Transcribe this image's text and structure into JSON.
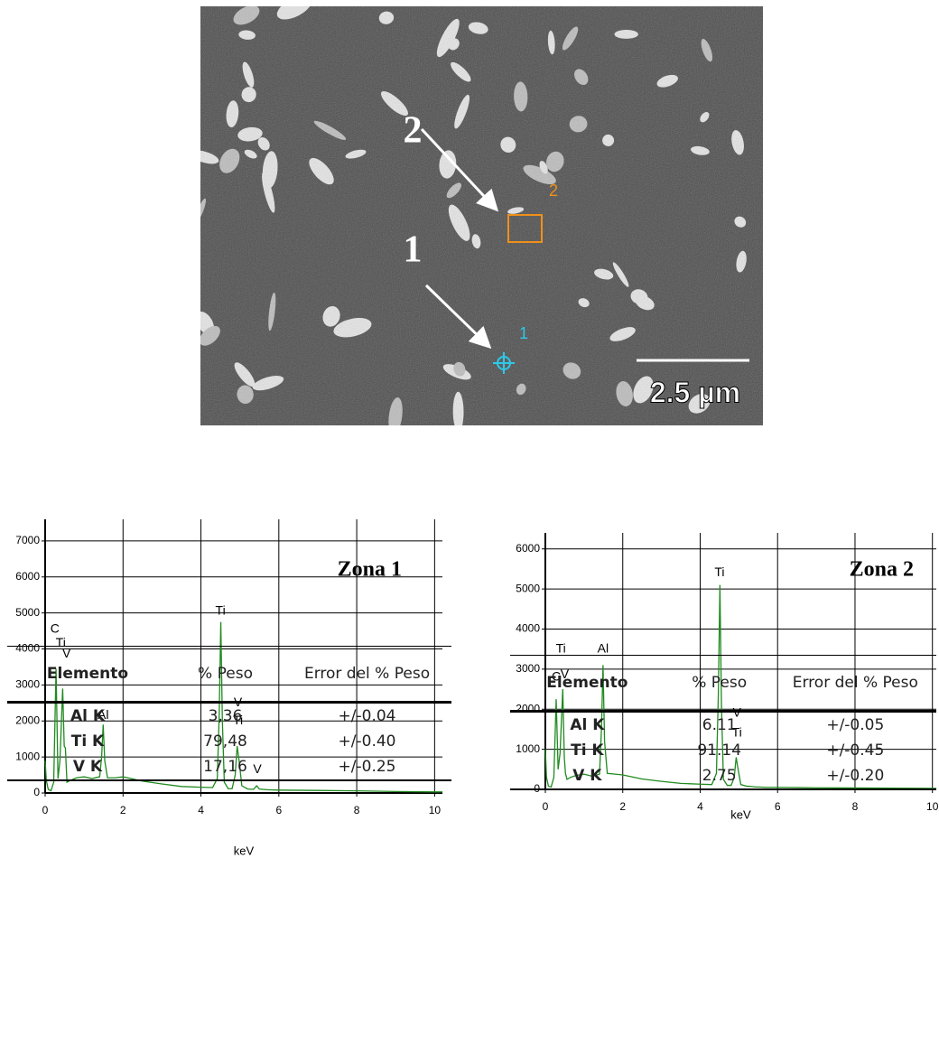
{
  "image": {
    "labels": [
      "2",
      "1"
    ],
    "markers": [
      "2",
      "1"
    ],
    "scale_bar": "2.5 µm"
  },
  "chart_data": [
    {
      "type": "line",
      "title": "Zona 1",
      "x_label": "keV",
      "color": "#1f8a1f",
      "grid": true,
      "x": [
        0,
        0.03,
        0.08,
        0.15,
        0.22,
        0.28,
        0.33,
        0.38,
        0.45,
        0.49,
        0.52,
        0.56,
        0.65,
        0.8,
        1.0,
        1.2,
        1.4,
        1.45,
        1.49,
        1.53,
        1.6,
        1.8,
        2.0,
        2.5,
        3.0,
        3.5,
        4.0,
        4.3,
        4.42,
        4.47,
        4.51,
        4.55,
        4.6,
        4.7,
        4.8,
        4.88,
        4.93,
        4.98,
        5.05,
        5.2,
        5.35,
        5.43,
        5.5,
        5.7,
        6.0,
        7.0,
        8.0,
        9.0,
        10.0,
        10.2
      ],
      "values": [
        900,
        350,
        100,
        60,
        300,
        3450,
        400,
        900,
        2900,
        1300,
        1250,
        300,
        350,
        420,
        450,
        400,
        450,
        1000,
        1900,
        900,
        420,
        420,
        450,
        330,
        250,
        180,
        160,
        150,
        400,
        2200,
        4750,
        2000,
        300,
        120,
        120,
        500,
        1300,
        900,
        200,
        110,
        100,
        200,
        110,
        90,
        80,
        70,
        60,
        40,
        30,
        30
      ],
      "xlim": [
        0,
        10.2
      ],
      "xticks": [
        0,
        2,
        4,
        6,
        8,
        10
      ],
      "ylim": [
        0,
        7600
      ],
      "yticks": [
        0,
        1000,
        2000,
        3000,
        4000,
        5000,
        6000,
        7000
      ],
      "annotations": [
        {
          "text": "C",
          "x": 0.25,
          "y": 4550
        },
        {
          "text": "Ti",
          "x": 0.4,
          "y": 4150
        },
        {
          "text": "V",
          "x": 0.55,
          "y": 3850
        },
        {
          "text": "Al",
          "x": 1.49,
          "y": 2150
        },
        {
          "text": "Ti",
          "x": 4.5,
          "y": 5050
        },
        {
          "text": "V",
          "x": 4.95,
          "y": 2500
        },
        {
          "text": "Ti",
          "x": 4.95,
          "y": 2000
        },
        {
          "text": "V",
          "x": 5.45,
          "y": 650
        }
      ]
    },
    {
      "type": "line",
      "title": "Zona 2",
      "x_label": "keV",
      "color": "#1f8a1f",
      "grid": true,
      "x": [
        0,
        0.03,
        0.08,
        0.15,
        0.22,
        0.28,
        0.33,
        0.38,
        0.45,
        0.49,
        0.52,
        0.56,
        0.65,
        0.8,
        1.0,
        1.2,
        1.4,
        1.45,
        1.49,
        1.53,
        1.6,
        1.8,
        2.0,
        2.5,
        3.0,
        3.5,
        4.0,
        4.3,
        4.42,
        4.47,
        4.51,
        4.55,
        4.6,
        4.7,
        4.8,
        4.88,
        4.93,
        4.98,
        5.05,
        5.2,
        5.35,
        5.43,
        5.5,
        5.7,
        6.0,
        7.0,
        8.0,
        9.0,
        10.0,
        10.1
      ],
      "values": [
        1000,
        300,
        80,
        60,
        300,
        2250,
        500,
        900,
        2500,
        800,
        400,
        250,
        300,
        350,
        380,
        330,
        380,
        1500,
        3100,
        1200,
        400,
        380,
        360,
        260,
        200,
        150,
        130,
        120,
        400,
        2400,
        5100,
        2100,
        250,
        100,
        100,
        300,
        800,
        500,
        120,
        80,
        70,
        60,
        60,
        50,
        50,
        40,
        35,
        30,
        25,
        25
      ],
      "xlim": [
        0,
        10.1
      ],
      "xticks": [
        0,
        2,
        4,
        6,
        8,
        10
      ],
      "ylim": [
        0,
        6400
      ],
      "yticks": [
        0,
        1000,
        2000,
        3000,
        4000,
        5000,
        6000
      ],
      "annotations": [
        {
          "text": "Ti",
          "x": 0.4,
          "y": 3500
        },
        {
          "text": "C",
          "x": 0.28,
          "y": 2800
        },
        {
          "text": "V",
          "x": 0.5,
          "y": 2850
        },
        {
          "text": "Al",
          "x": 1.49,
          "y": 3500
        },
        {
          "text": "Ti",
          "x": 4.5,
          "y": 5400
        },
        {
          "text": "V",
          "x": 4.95,
          "y": 1900
        },
        {
          "text": "Ti",
          "x": 4.95,
          "y": 1400
        }
      ]
    }
  ],
  "tables": [
    {
      "header": [
        "Elemento",
        "% Peso",
        "Error del % Peso"
      ],
      "rows": [
        [
          "Al K",
          "3,36",
          "+/-0.04"
        ],
        [
          "Ti K",
          "79,48",
          "+/-0.40"
        ],
        [
          "V K",
          "17,16",
          "+/-0.25"
        ]
      ]
    },
    {
      "header": [
        "Elemento",
        "% Peso",
        "Error del % Peso"
      ],
      "rows": [
        [
          "Al K",
          "6.11",
          "+/-0.05"
        ],
        [
          "Ti K",
          "91.14",
          "+/-0.45"
        ],
        [
          "V K",
          "2.75",
          "+/-0.20"
        ]
      ]
    }
  ]
}
